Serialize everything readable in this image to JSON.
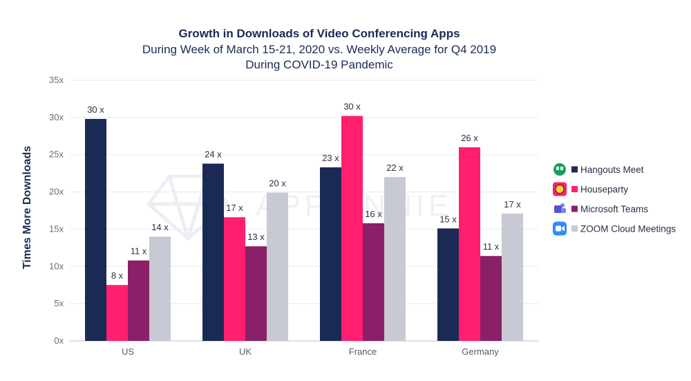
{
  "chart_data": {
    "type": "bar",
    "title": "Growth in Downloads of Video Conferencing Apps",
    "subtitle_lines": [
      "During Week of March 15-21, 2020 vs. Weekly Average for Q4 2019",
      "During COVID-19 Pandemic"
    ],
    "ylabel": "Times More Downloads",
    "xlabel": "",
    "categories": [
      "US",
      "UK",
      "France",
      "Germany"
    ],
    "ylim": [
      0,
      35
    ],
    "yticks": [
      "0x",
      "5x",
      "10x",
      "15x",
      "20x",
      "25x",
      "30x",
      "35x"
    ],
    "grid": true,
    "legend_position": "right",
    "series": [
      {
        "name": "Hangouts Meet",
        "color": "#1b2a55",
        "icon": "hangouts-meet-icon",
        "values": [
          29.8,
          23.8,
          23.3,
          15.1
        ],
        "labels": [
          "30 x",
          "24 x",
          "23 x",
          "15 x"
        ]
      },
      {
        "name": "Houseparty",
        "color": "#ff1f6e",
        "icon": "houseparty-icon",
        "values": [
          7.5,
          16.6,
          30.2,
          26.0
        ],
        "labels": [
          "8 x",
          "17 x",
          "30 x",
          "26 x"
        ]
      },
      {
        "name": "Microsoft Teams",
        "color": "#8a2068",
        "icon": "microsoft-teams-icon",
        "values": [
          10.8,
          12.7,
          15.8,
          11.4
        ],
        "labels": [
          "11 x",
          "13 x",
          "16 x",
          "11 x"
        ]
      },
      {
        "name": "ZOOM Cloud Meetings",
        "color": "#c7c9d3",
        "icon": "zoom-icon",
        "values": [
          14.0,
          19.9,
          22.0,
          17.1
        ],
        "labels": [
          "14 x",
          "20 x",
          "22 x",
          "17 x"
        ]
      }
    ]
  },
  "watermark": {
    "text": "APP ANNIE",
    "icon": "app-annie-logo-icon"
  }
}
